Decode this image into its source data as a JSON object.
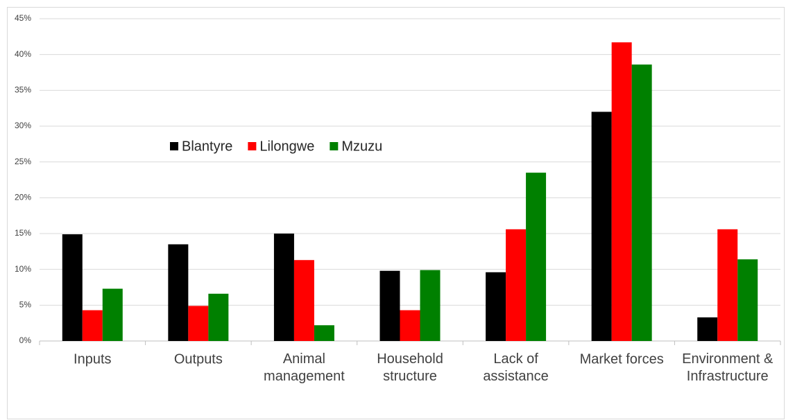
{
  "chart_data": {
    "type": "bar",
    "categories": [
      "Inputs",
      "Outputs",
      "Animal\nmanagement",
      "Household\nstructure",
      "Lack of\nassistance",
      "Market forces",
      "Environment &\nInfrastructure"
    ],
    "series": [
      {
        "name": "Blantyre",
        "color": "#000000",
        "values": [
          14.9,
          13.5,
          15.0,
          9.8,
          9.6,
          32.0,
          3.3
        ]
      },
      {
        "name": "Lilongwe",
        "color": "#ff0000",
        "values": [
          4.3,
          4.9,
          11.3,
          4.3,
          15.6,
          41.7,
          15.6
        ]
      },
      {
        "name": "Mzuzu",
        "color": "#008000",
        "values": [
          7.3,
          6.6,
          2.2,
          9.9,
          23.5,
          38.6,
          11.4
        ]
      }
    ],
    "ylim": [
      0,
      45
    ],
    "yticks": [
      {
        "value": 0,
        "label": "0%"
      },
      {
        "value": 5,
        "label": "5%"
      },
      {
        "value": 10,
        "label": "10%"
      },
      {
        "value": 15,
        "label": "15%"
      },
      {
        "value": 20,
        "label": "20%"
      },
      {
        "value": 25,
        "label": "25%"
      },
      {
        "value": 30,
        "label": "30%"
      },
      {
        "value": 35,
        "label": "35%"
      },
      {
        "value": 40,
        "label": "40%"
      },
      {
        "value": 45,
        "label": "45%"
      }
    ],
    "grid": true
  }
}
